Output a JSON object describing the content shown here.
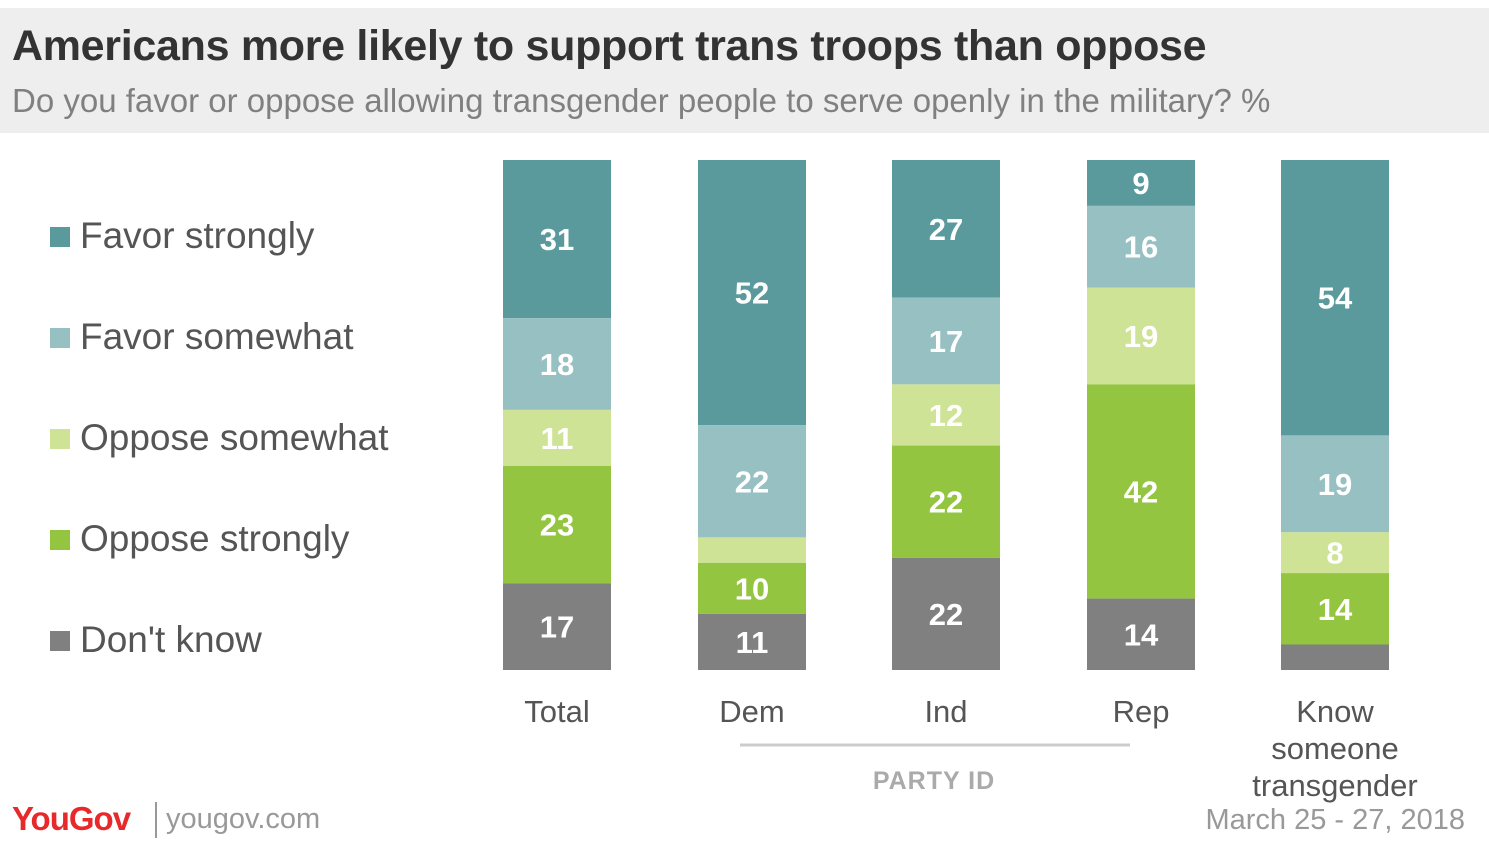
{
  "header": {
    "title": "Americans more likely to support trans troops than oppose",
    "subtitle": "Do you favor or oppose allowing transgender people to serve openly in the military? %"
  },
  "legend": [
    {
      "label": "Favor strongly",
      "color": "#5a9a9c"
    },
    {
      "label": "Favor somewhat",
      "color": "#96c0c2"
    },
    {
      "label": "Oppose somewhat",
      "color": "#cfe396"
    },
    {
      "label": "Oppose strongly",
      "color": "#93c541"
    },
    {
      "label": "Don't know",
      "color": "#808080"
    }
  ],
  "group_label": "PARTY ID",
  "footer": {
    "logo": "YouGov",
    "site": "yougov.com",
    "date": "March 25 - 27, 2018"
  },
  "chart_data": {
    "type": "bar",
    "stacked": true,
    "categories": [
      "Total",
      "Dem",
      "Ind",
      "Rep",
      "Know someone transgender"
    ],
    "series": [
      {
        "name": "Favor strongly",
        "values": [
          31,
          52,
          27,
          9,
          54
        ],
        "labels": [
          "31",
          "52",
          "27",
          "9",
          "54"
        ]
      },
      {
        "name": "Favor somewhat",
        "values": [
          18,
          22,
          17,
          16,
          19
        ],
        "labels": [
          "18",
          "22",
          "17",
          "16",
          "19"
        ]
      },
      {
        "name": "Oppose somewhat",
        "values": [
          11,
          5,
          12,
          19,
          8
        ],
        "labels": [
          "11",
          "",
          "12",
          "19",
          "8"
        ]
      },
      {
        "name": "Oppose strongly",
        "values": [
          23,
          10,
          22,
          42,
          14
        ],
        "labels": [
          "23",
          "10",
          "22",
          "42",
          "14"
        ]
      },
      {
        "name": "Don't know",
        "values": [
          17,
          11,
          22,
          14,
          5
        ],
        "labels": [
          "17",
          "11",
          "22",
          "14",
          ""
        ]
      }
    ],
    "title": "Americans more likely to support trans troops than oppose",
    "xlabel": "",
    "ylabel": "%"
  }
}
